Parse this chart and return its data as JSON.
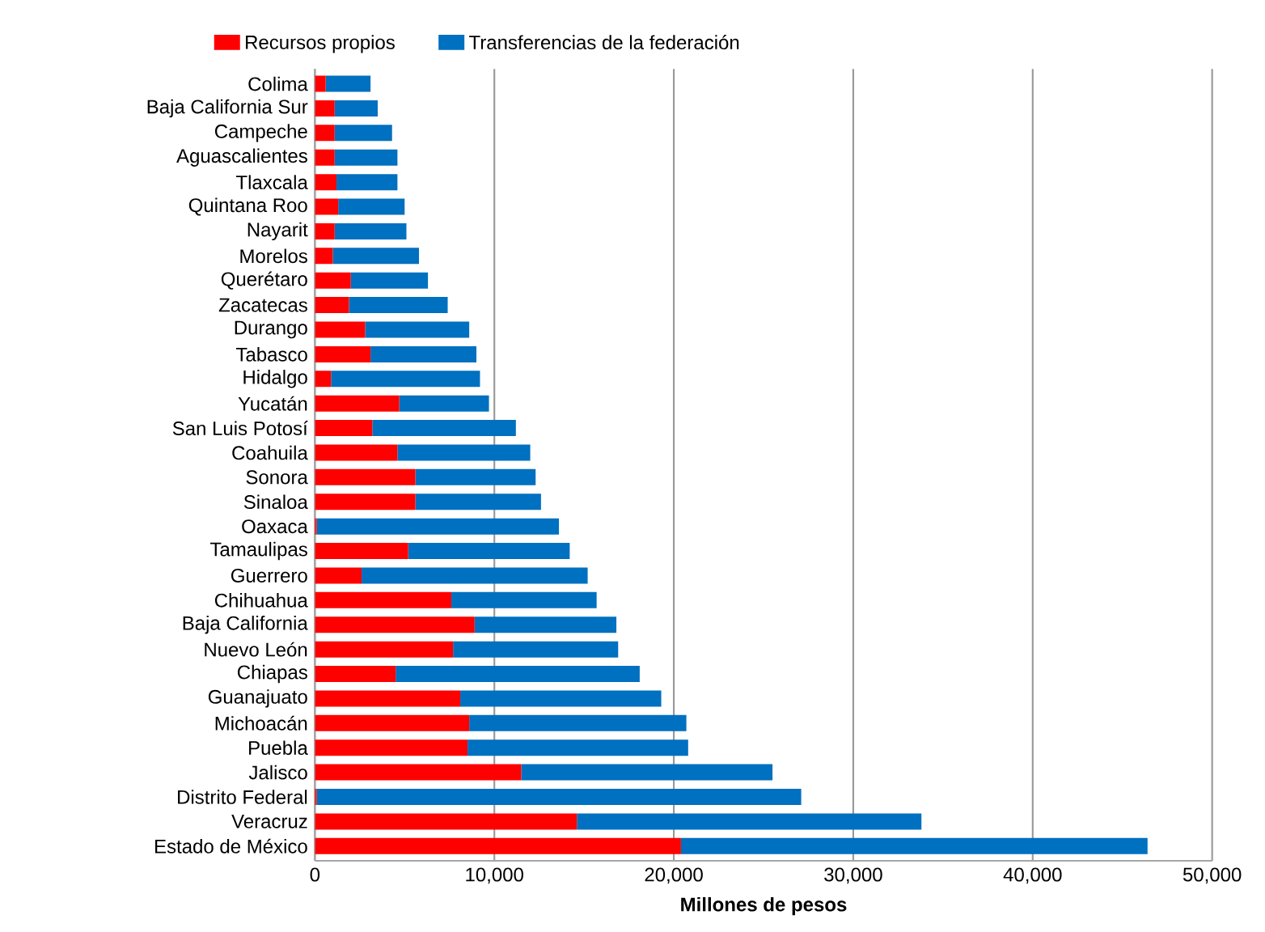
{
  "chart_data": {
    "type": "bar",
    "orientation": "horizontal",
    "stacked": true,
    "categories": [
      "Colima",
      "Baja California Sur",
      "Campeche",
      "Aguascalientes",
      "Tlaxcala",
      "Quintana Roo",
      "Nayarit",
      "Morelos",
      "Querétaro",
      "Zacatecas",
      "Durango",
      "Tabasco",
      "Hidalgo",
      "Yucatán",
      "San Luis Potosí",
      "Coahuila",
      "Sonora",
      "Sinaloa",
      "Oaxaca",
      "Tamaulipas",
      "Guerrero",
      "Chihuahua",
      "Baja California",
      "Nuevo León",
      "Chiapas",
      "Guanajuato",
      "Michoacán",
      "Puebla",
      "Jalisco",
      "Distrito Federal",
      "Veracruz",
      "Estado de México"
    ],
    "series": [
      {
        "name": "Recursos propios",
        "color": "#ff0000",
        "values": [
          600,
          1100,
          1100,
          1100,
          1200,
          1300,
          1100,
          1000,
          2000,
          1900,
          2800,
          3100,
          900,
          4700,
          3200,
          4600,
          5600,
          5600,
          100,
          5200,
          2600,
          7600,
          8900,
          7700,
          4500,
          8100,
          8600,
          8500,
          11500,
          100,
          14600,
          20400
        ]
      },
      {
        "name": "Transferencias de la federación",
        "color": "#0070c0",
        "values": [
          2500,
          2400,
          3200,
          3500,
          3400,
          3700,
          4000,
          4800,
          4300,
          5500,
          5800,
          5900,
          8300,
          5000,
          8000,
          7400,
          6700,
          7000,
          13500,
          9000,
          12600,
          8100,
          7900,
          9200,
          13600,
          11200,
          12100,
          12300,
          14000,
          27000,
          19200,
          26000
        ]
      }
    ],
    "xlabel": "Millones de pesos",
    "xlim": [
      0,
      50000
    ],
    "xticks": [
      {
        "value": 0,
        "label": "0"
      },
      {
        "value": 10000,
        "label": "10,000"
      },
      {
        "value": 20000,
        "label": "20,000"
      },
      {
        "value": 30000,
        "label": "30,000"
      },
      {
        "value": 40000,
        "label": "40,000"
      },
      {
        "value": 50000,
        "label": "50,000"
      }
    ],
    "grid": "x",
    "legend": "top"
  }
}
